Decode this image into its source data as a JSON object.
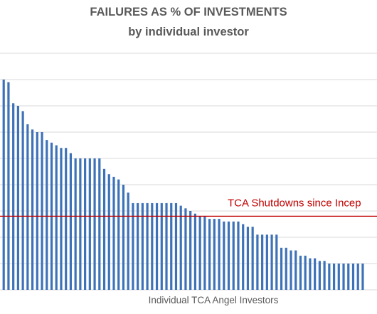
{
  "chart_data": {
    "type": "bar",
    "title": "FAILURES AS % OF INVESTMENTS",
    "subtitle": "by individual investor",
    "xlabel": "Individual TCA Angel Investors",
    "ylabel": "",
    "ylim": [
      0,
      100
    ],
    "grid": true,
    "colors": {
      "bars": "#3E72B8",
      "grid": "#D9D9D9",
      "reference_line": "#C00000",
      "reference_text": "#C00000",
      "axis_text": "#595959"
    },
    "reference_line": {
      "label": "TCA Shutdowns since Incep",
      "value": 28
    },
    "values": [
      80,
      79,
      71,
      70,
      68,
      63,
      61,
      60,
      60,
      57,
      56,
      55,
      54,
      54,
      52,
      50,
      50,
      50,
      50,
      50,
      50,
      46,
      44,
      43,
      42,
      40,
      37,
      33,
      33,
      33,
      33,
      33,
      33,
      33,
      33,
      33,
      33,
      32,
      31,
      30,
      29,
      28,
      28,
      27,
      27,
      27,
      26,
      26,
      26,
      26,
      25,
      24,
      24,
      21,
      21,
      21,
      21,
      21,
      16,
      16,
      15,
      15,
      13,
      13,
      12,
      12,
      11,
      11,
      10,
      10,
      10,
      10,
      10,
      10,
      10,
      10
    ]
  }
}
